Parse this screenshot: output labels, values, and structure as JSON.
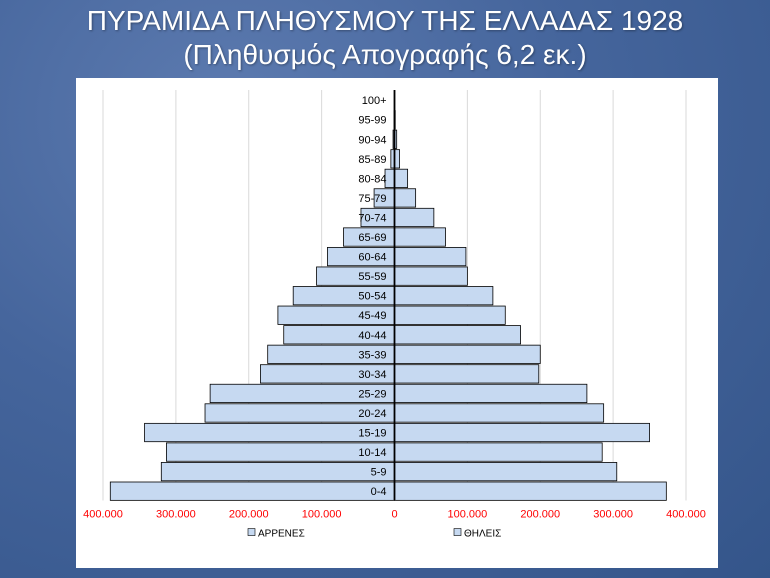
{
  "slide": {
    "title_line1": "ΠΥΡΑΜΙΔΑ ΠΛΗΘΥΣΜΟΥ ΤΗΣ ΕΛΛΑΔΑΣ 1928",
    "title_line2": "(Πληθυσμός Απογραφής 6,2 εκ.)"
  },
  "chart_data": {
    "type": "bar",
    "orientation": "horizontal",
    "subtype": "population-pyramid",
    "categories": [
      "0-4",
      "5-9",
      "10-14",
      "15-19",
      "20-24",
      "25-29",
      "30-34",
      "35-39",
      "40-44",
      "45-49",
      "50-54",
      "55-59",
      "60-64",
      "65-69",
      "70-74",
      "75-79",
      "80-84",
      "85-89",
      "90-94",
      "95-99",
      "100+"
    ],
    "series": [
      {
        "name": "ΑΡΡΕΝΕΣ",
        "values": [
          390000,
          320000,
          313000,
          343000,
          260000,
          253000,
          184000,
          174000,
          152000,
          160000,
          139000,
          107000,
          92000,
          70000,
          46000,
          28000,
          13000,
          5000,
          2000,
          500,
          200
        ],
        "color": "#c6d9f1"
      },
      {
        "name": "ΘΗΛΕΙΣ",
        "values": [
          373000,
          305000,
          285000,
          350000,
          287000,
          264000,
          198000,
          200000,
          173000,
          152000,
          135000,
          100000,
          98000,
          70000,
          54000,
          29000,
          18000,
          7000,
          3000,
          1000,
          300
        ],
        "color": "#c6d9f1"
      }
    ],
    "x_ticks": [
      "400.000",
      "300.000",
      "200.000",
      "100.000",
      "0",
      "100.000",
      "200.000",
      "300.000",
      "400.000"
    ],
    "xlim": [
      -400000,
      400000
    ],
    "tick_color": "#ff0000",
    "grid": "vertical",
    "legend_position": "bottom"
  }
}
